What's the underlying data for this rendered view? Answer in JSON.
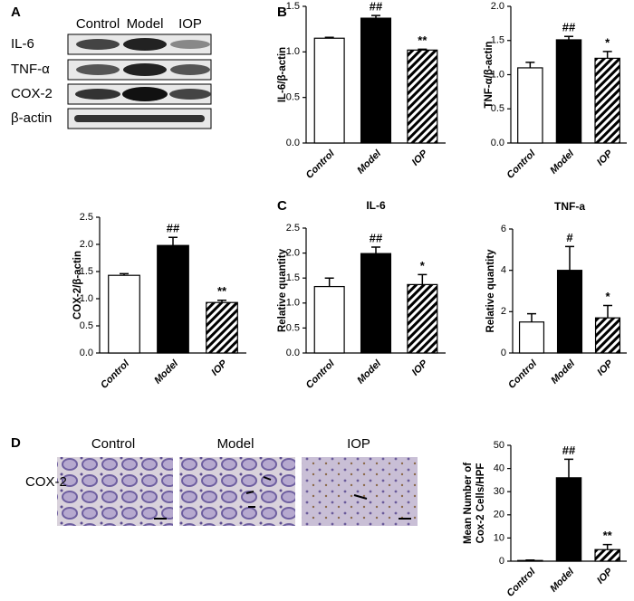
{
  "panel_labels": [
    "A",
    "B",
    "C",
    "D"
  ],
  "blot": {
    "lanes": [
      "Control",
      "Model",
      "IOP"
    ],
    "rows": [
      "IL-6",
      "TNF-α",
      "COX-2",
      "β-actin"
    ]
  },
  "histology": {
    "lanes": [
      "Control",
      "Model",
      "IOP"
    ],
    "stain": "COX-2"
  },
  "chart_data": [
    {
      "type": "bar",
      "ylabel": "IL-6/β-actin",
      "categories": [
        "Control",
        "Model",
        "IOP"
      ],
      "values": [
        1.15,
        1.37,
        1.02
      ],
      "errors": [
        0.01,
        0.03,
        0.01
      ],
      "annotations": [
        null,
        "##",
        "**"
      ],
      "colors": [
        "#ffffff",
        "#000000",
        "#000000"
      ],
      "hatch": [
        false,
        false,
        true
      ],
      "ylim": [
        0,
        1.5
      ],
      "yticks": [
        {
          "value": 0,
          "label": "0.0"
        },
        0.5,
        {
          "value": 1,
          "label": "1.0"
        },
        1.5
      ]
    },
    {
      "type": "bar",
      "ylabel": "TNF-α/β-actin",
      "categories": [
        "Control",
        "Model",
        "IOP"
      ],
      "values": [
        1.1,
        1.51,
        1.24
      ],
      "errors": [
        0.08,
        0.05,
        0.1
      ],
      "annotations": [
        null,
        "##",
        "*"
      ],
      "colors": [
        "#ffffff",
        "#000000",
        "#000000"
      ],
      "hatch": [
        false,
        false,
        true
      ],
      "ylim": [
        0,
        2
      ],
      "yticks": [
        {
          "value": 0,
          "label": "0.0"
        },
        0.5,
        {
          "value": 1,
          "label": "1.0"
        },
        1.5,
        {
          "value": 2,
          "label": "2.0"
        }
      ]
    },
    {
      "type": "bar",
      "ylabel": "COX-2/β-actin",
      "categories": [
        "Control",
        "Model",
        "IOP"
      ],
      "values": [
        1.43,
        1.98,
        0.93
      ],
      "errors": [
        0.03,
        0.15,
        0.04
      ],
      "annotations": [
        null,
        "##",
        "**"
      ],
      "colors": [
        "#ffffff",
        "#000000",
        "#000000"
      ],
      "hatch": [
        false,
        false,
        true
      ],
      "ylim": [
        0,
        2.5
      ],
      "yticks": [
        {
          "value": 0,
          "label": "0.0"
        },
        0.5,
        {
          "value": 1,
          "label": "1.0"
        },
        1.5,
        {
          "value": 2,
          "label": "2.0"
        },
        2.5
      ]
    },
    {
      "type": "bar",
      "title": "IL-6",
      "ylabel": "Relative quantity",
      "categories": [
        "Control",
        "Model",
        "IOP"
      ],
      "values": [
        1.33,
        1.99,
        1.37
      ],
      "errors": [
        0.17,
        0.13,
        0.2
      ],
      "annotations": [
        null,
        "##",
        "*"
      ],
      "colors": [
        "#ffffff",
        "#000000",
        "#000000"
      ],
      "hatch": [
        false,
        false,
        true
      ],
      "ylim": [
        0,
        2.5
      ],
      "yticks": [
        {
          "value": 0,
          "label": "0.0"
        },
        0.5,
        {
          "value": 1,
          "label": "1.0"
        },
        1.5,
        {
          "value": 2,
          "label": "2.0"
        },
        2.5
      ]
    },
    {
      "type": "bar",
      "title": "TNF-a",
      "ylabel": "Relative quantity",
      "categories": [
        "Control",
        "Model",
        "IOP"
      ],
      "values": [
        1.5,
        4.0,
        1.7
      ],
      "errors": [
        0.4,
        1.15,
        0.6
      ],
      "annotations": [
        null,
        "#",
        "*"
      ],
      "colors": [
        "#ffffff",
        "#000000",
        "#000000"
      ],
      "hatch": [
        false,
        false,
        true
      ],
      "ylim": [
        0,
        6
      ],
      "yticks": [
        0,
        2,
        4,
        6
      ]
    },
    {
      "type": "bar",
      "ylabel": [
        "Mean Number of",
        "Cox-2 Cells/HPF"
      ],
      "categories": [
        "Control",
        "Model",
        "IOP"
      ],
      "values": [
        0.3,
        36,
        5
      ],
      "errors": [
        0.2,
        8,
        2.2
      ],
      "annotations": [
        null,
        "##",
        "**"
      ],
      "colors": [
        "#ffffff",
        "#000000",
        "#000000"
      ],
      "hatch": [
        false,
        false,
        true
      ],
      "ylim": [
        0,
        50
      ],
      "yticks": [
        0,
        10,
        20,
        30,
        40,
        50
      ]
    }
  ]
}
